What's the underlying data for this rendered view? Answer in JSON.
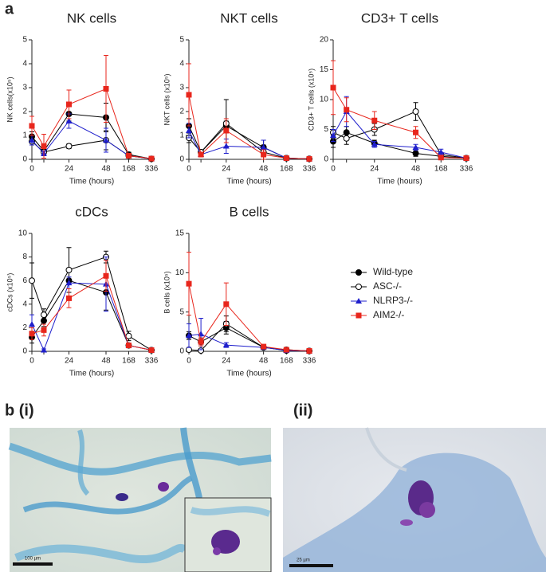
{
  "panels": {
    "a": "a",
    "b_i": "b (i)",
    "b_ii": "(ii)"
  },
  "images": {
    "scale_bar_i": "100 µm",
    "scale_bar_ii": "25 µm"
  },
  "chart_data": [
    {
      "type": "line",
      "title": "NK cells",
      "y_label": "NK cells(x10⁵)",
      "x_label": "Time (hours)",
      "categories": [
        "0",
        null,
        "24",
        "48",
        "168",
        "336"
      ],
      "ylim": [
        0,
        5
      ],
      "yticks": [
        0,
        1,
        2,
        3,
        4,
        5
      ],
      "series": [
        {
          "name": "Wild-type",
          "color": "#000000",
          "marker": "circle",
          "values": [
            0.95,
            0.35,
            1.9,
            1.75,
            0.2,
            0.02
          ],
          "errors": [
            0.2,
            0.1,
            0.3,
            0.6,
            0.1,
            0.02
          ]
        },
        {
          "name": "ASC-/-",
          "color": "#000000",
          "marker": "open-circle",
          "values": [
            0.75,
            0.3,
            0.55,
            0.8,
            0.15,
            0.02
          ],
          "errors": [
            0.15,
            0.1,
            0.1,
            0.4,
            0.05,
            0.02
          ]
        },
        {
          "name": "NLRP3-/-",
          "color": "#1f1fcc",
          "marker": "triangle",
          "values": [
            0.8,
            0.25,
            1.6,
            0.8,
            0.15,
            0.02
          ],
          "errors": [
            0.2,
            0.1,
            0.3,
            0.5,
            0.05,
            0.02
          ]
        },
        {
          "name": "AIM2-/-",
          "color": "#e8261c",
          "marker": "square",
          "values": [
            1.4,
            0.55,
            2.3,
            2.95,
            0.15,
            0.03
          ],
          "errors": [
            0.4,
            0.5,
            0.6,
            1.4,
            0.1,
            0.02
          ]
        }
      ]
    },
    {
      "type": "line",
      "title": "NKT cells",
      "y_label": "NKT cells (x10⁵)",
      "x_label": "Time (hours)",
      "categories": [
        "0",
        null,
        "24",
        "48",
        "168",
        "336"
      ],
      "ylim": [
        0,
        5
      ],
      "yticks": [
        0,
        1,
        2,
        3,
        4,
        5
      ],
      "series": [
        {
          "color": "#000000",
          "marker": "circle",
          "values": [
            1.4,
            0.3,
            1.4,
            0.5,
            0.05,
            0.02
          ],
          "errors": [
            0.3,
            0.1,
            0.2,
            0.3,
            0.03,
            0.01
          ]
        },
        {
          "color": "#000000",
          "marker": "open-circle",
          "values": [
            0.9,
            0.3,
            1.5,
            0.3,
            0.05,
            0.02
          ],
          "errors": [
            0.2,
            0.1,
            1.0,
            0.3,
            0.03,
            0.01
          ]
        },
        {
          "color": "#1f1fcc",
          "marker": "triangle",
          "values": [
            1.2,
            0.2,
            0.55,
            0.5,
            0.05,
            0.02
          ],
          "errors": [
            0.3,
            0.1,
            0.3,
            0.3,
            0.03,
            0.01
          ]
        },
        {
          "color": "#e8261c",
          "marker": "square",
          "values": [
            2.7,
            0.2,
            1.2,
            0.2,
            0.05,
            0.02
          ],
          "errors": [
            1.3,
            0.1,
            0.5,
            0.2,
            0.03,
            0.01
          ]
        }
      ]
    },
    {
      "type": "line",
      "title": "CD3+ T cells",
      "y_label": "CD3+ T cells (x10⁵)",
      "x_label": "Time (hours)",
      "categories": [
        "0",
        null,
        "24",
        "48",
        "168",
        "336"
      ],
      "ylim": [
        0,
        20
      ],
      "yticks": [
        0,
        5,
        10,
        15,
        20
      ],
      "series": [
        {
          "color": "#000000",
          "marker": "circle",
          "values": [
            3,
            4.5,
            2.7,
            1,
            0.5,
            0.2
          ],
          "errors": [
            1,
            1,
            0.5,
            0.5,
            0.2,
            0.1
          ]
        },
        {
          "color": "#000000",
          "marker": "open-circle",
          "values": [
            4.5,
            3.5,
            5,
            8,
            0.8,
            0.2
          ],
          "errors": [
            1,
            1,
            1,
            1.5,
            0.3,
            0.1
          ]
        },
        {
          "color": "#1f1fcc",
          "marker": "triangle",
          "values": [
            4,
            8,
            2.5,
            2,
            1.2,
            0.2
          ],
          "errors": [
            1,
            2.5,
            0.5,
            0.5,
            0.5,
            0.1
          ]
        },
        {
          "color": "#e8261c",
          "marker": "square",
          "values": [
            12,
            8.3,
            6.5,
            4.5,
            0.3,
            0.2
          ],
          "errors": [
            4.5,
            2,
            1.5,
            1,
            0.2,
            0.1
          ]
        }
      ]
    },
    {
      "type": "line",
      "title": "cDCs",
      "y_label": "cDCs (x10⁵)",
      "x_label": "Time (hours)",
      "categories": [
        "0",
        null,
        "24",
        "48",
        "168",
        "336"
      ],
      "ylim": [
        0,
        10
      ],
      "yticks": [
        0,
        2,
        4,
        6,
        8,
        10
      ],
      "series": [
        {
          "color": "#000000",
          "marker": "circle",
          "values": [
            1.2,
            2.6,
            6,
            5,
            0.5,
            0.1
          ],
          "errors": [
            0.5,
            0.5,
            1,
            1.5,
            0.2,
            0.05
          ]
        },
        {
          "color": "#000000",
          "marker": "open-circle",
          "values": [
            6,
            3.1,
            6.9,
            8,
            1.3,
            0.1
          ],
          "errors": [
            1.5,
            0.5,
            1.9,
            0.5,
            0.4,
            0.05
          ]
        },
        {
          "color": "#1f1fcc",
          "marker": "triangle",
          "values": [
            2.3,
            0.1,
            5.8,
            5.7,
            0.5,
            0.1
          ],
          "errors": [
            0.8,
            0.1,
            0.5,
            2.3,
            0.2,
            0.05
          ]
        },
        {
          "color": "#e8261c",
          "marker": "square",
          "values": [
            1.5,
            1.8,
            4.5,
            6.4,
            0.5,
            0.1
          ],
          "errors": [
            0.5,
            0.5,
            0.8,
            1.3,
            0.2,
            0.05
          ]
        }
      ]
    },
    {
      "type": "line",
      "title": "B cells",
      "y_label": "B cells (x10⁵)",
      "x_label": "Time (hours)",
      "categories": [
        "0",
        null,
        "24",
        "48",
        "168",
        "336"
      ],
      "ylim": [
        0,
        15
      ],
      "yticks": [
        0,
        5,
        10,
        15
      ],
      "series": [
        {
          "color": "#000000",
          "marker": "circle",
          "values": [
            2,
            1.2,
            3,
            0.5,
            0.1,
            0.05
          ],
          "errors": [
            0.5,
            0.5,
            0.8,
            0.2,
            0.1,
            0.05
          ]
        },
        {
          "color": "#000000",
          "marker": "open-circle",
          "values": [
            0.2,
            0.1,
            3.5,
            0.5,
            0.2,
            0.05
          ],
          "errors": [
            0.2,
            0.1,
            1,
            0.2,
            0.1,
            0.05
          ]
        },
        {
          "color": "#1f1fcc",
          "marker": "triangle",
          "values": [
            2,
            2.2,
            0.8,
            0.5,
            0.1,
            0.05
          ],
          "errors": [
            1.5,
            2,
            0.3,
            0.2,
            0.1,
            0.05
          ]
        },
        {
          "color": "#e8261c",
          "marker": "square",
          "values": [
            8.6,
            1.2,
            6,
            0.6,
            0.2,
            0.05
          ],
          "errors": [
            4,
            0.5,
            2.7,
            0.2,
            0.1,
            0.05
          ]
        }
      ]
    }
  ]
}
